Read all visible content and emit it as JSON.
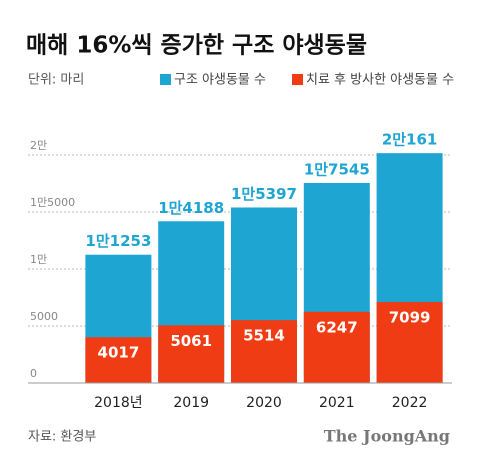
{
  "chart_data": {
    "type": "bar",
    "title": "매해 16%씩 증가한 구조 야생동물",
    "unit": "단위: 마리",
    "source": "자료: 환경부",
    "brand": "The JoongAng",
    "categories": [
      "2018년",
      "2019",
      "2020",
      "2021",
      "2022"
    ],
    "series": [
      {
        "name": "구조 야생동물 수",
        "color": "#1ea5d2",
        "values": [
          11253,
          14188,
          15397,
          17545,
          20161
        ],
        "value_labels": [
          "1만1253",
          "1만4188",
          "1만5397",
          "1만7545",
          "2만161"
        ]
      },
      {
        "name": "치료 후 방사한 야생동물 수",
        "color": "#f03c14",
        "values": [
          4017,
          5061,
          5514,
          6247,
          7099
        ]
      }
    ],
    "ylim": [
      0,
      20000
    ],
    "yticks": [
      0,
      5000,
      {
        "value": 10000,
        "label": "1만"
      },
      {
        "value": 15000,
        "label": "1만5000"
      },
      {
        "value": 20000,
        "label": "2만"
      }
    ],
    "grid": true
  }
}
